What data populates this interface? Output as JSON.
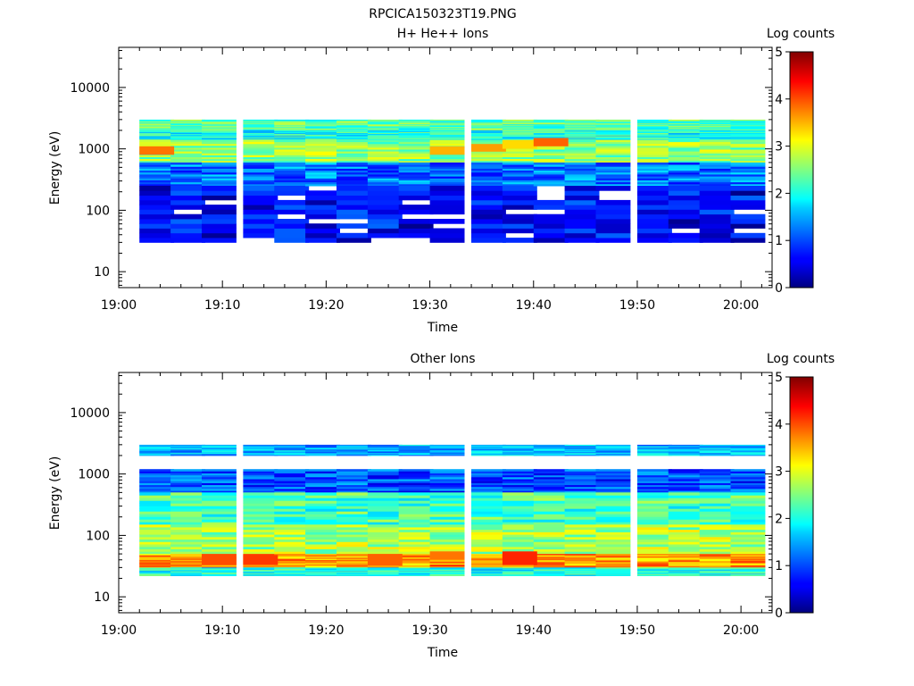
{
  "figure": {
    "title": "RPCICA150323T19.PNG"
  },
  "chart_data": [
    {
      "type": "heatmap",
      "title": "H+ He++ Ions",
      "xlabel": "Time",
      "ylabel": "Energy (eV)",
      "yscale": "log",
      "xlim": [
        "19:00",
        "20:03"
      ],
      "ylim": [
        5.5,
        45000
      ],
      "xticks": [
        "19:00",
        "19:10",
        "19:20",
        "19:30",
        "19:40",
        "19:50",
        "20:00"
      ],
      "yticks": [
        "10",
        "100",
        "1000",
        "10000"
      ],
      "colorbar": {
        "label": "Log counts",
        "range": [
          0,
          5
        ],
        "ticks": [
          "0",
          "1",
          "2",
          "3",
          "4",
          "5"
        ]
      },
      "time_bins": [
        "19:02",
        "19:05",
        "19:08",
        "19:12",
        "19:15",
        "19:18",
        "19:21",
        "19:24",
        "19:27",
        "19:30",
        "19:34",
        "19:37",
        "19:40",
        "19:43",
        "19:46",
        "19:50",
        "19:53",
        "19:56",
        "19:59"
      ],
      "bands": [
        {
          "emin": 2000,
          "emax": 3000,
          "log_counts": 2.3
        },
        {
          "emin": 1400,
          "emax": 2000,
          "log_counts": 2.0
        },
        {
          "emin": 600,
          "emax": 1400,
          "log_counts": 2.6
        },
        {
          "emin": 250,
          "emax": 600,
          "log_counts": 1.2
        },
        {
          "emin": 30,
          "emax": 250,
          "log_counts": 0.6
        }
      ],
      "peaks": [
        {
          "time": "19:02",
          "emin": 800,
          "emax": 1100,
          "log_counts": 3.8
        },
        {
          "time": "19:30",
          "emin": 800,
          "emax": 1100,
          "log_counts": 3.5
        },
        {
          "time": "19:34",
          "emin": 900,
          "emax": 1200,
          "log_counts": 3.6
        },
        {
          "time": "19:37",
          "emin": 1000,
          "emax": 1400,
          "log_counts": 3.3
        },
        {
          "time": "19:40",
          "emin": 1100,
          "emax": 1500,
          "log_counts": 3.9
        }
      ]
    },
    {
      "type": "heatmap",
      "title": "Other Ions",
      "xlabel": "Time",
      "ylabel": "Energy (eV)",
      "yscale": "log",
      "xlim": [
        "19:00",
        "20:03"
      ],
      "ylim": [
        5.5,
        45000
      ],
      "xticks": [
        "19:00",
        "19:10",
        "19:20",
        "19:30",
        "19:40",
        "19:50",
        "20:00"
      ],
      "yticks": [
        "10",
        "100",
        "1000",
        "10000"
      ],
      "colorbar": {
        "label": "Log counts",
        "range": [
          0,
          5
        ],
        "ticks": [
          "0",
          "1",
          "2",
          "3",
          "4",
          "5"
        ]
      },
      "time_bins": [
        "19:02",
        "19:05",
        "19:08",
        "19:12",
        "19:15",
        "19:18",
        "19:21",
        "19:24",
        "19:27",
        "19:30",
        "19:34",
        "19:37",
        "19:40",
        "19:43",
        "19:46",
        "19:50",
        "19:53",
        "19:56",
        "19:59"
      ],
      "bands": [
        {
          "emin": 2000,
          "emax": 3000,
          "log_counts": 1.5
        },
        {
          "emin": 500,
          "emax": 1200,
          "log_counts": 1.0
        },
        {
          "emin": 150,
          "emax": 500,
          "log_counts": 2.2
        },
        {
          "emin": 50,
          "emax": 150,
          "log_counts": 2.7
        },
        {
          "emin": 30,
          "emax": 50,
          "log_counts": 3.6
        },
        {
          "emin": 22,
          "emax": 30,
          "log_counts": 2.0
        }
      ],
      "peaks": [
        {
          "time": "19:08",
          "emin": 33,
          "emax": 48,
          "log_counts": 4.0
        },
        {
          "time": "19:12",
          "emin": 33,
          "emax": 48,
          "log_counts": 4.1
        },
        {
          "time": "19:24",
          "emin": 32,
          "emax": 50,
          "log_counts": 3.9
        },
        {
          "time": "19:30",
          "emin": 40,
          "emax": 55,
          "log_counts": 3.8
        },
        {
          "time": "19:37",
          "emin": 33,
          "emax": 55,
          "log_counts": 4.2
        }
      ]
    }
  ]
}
